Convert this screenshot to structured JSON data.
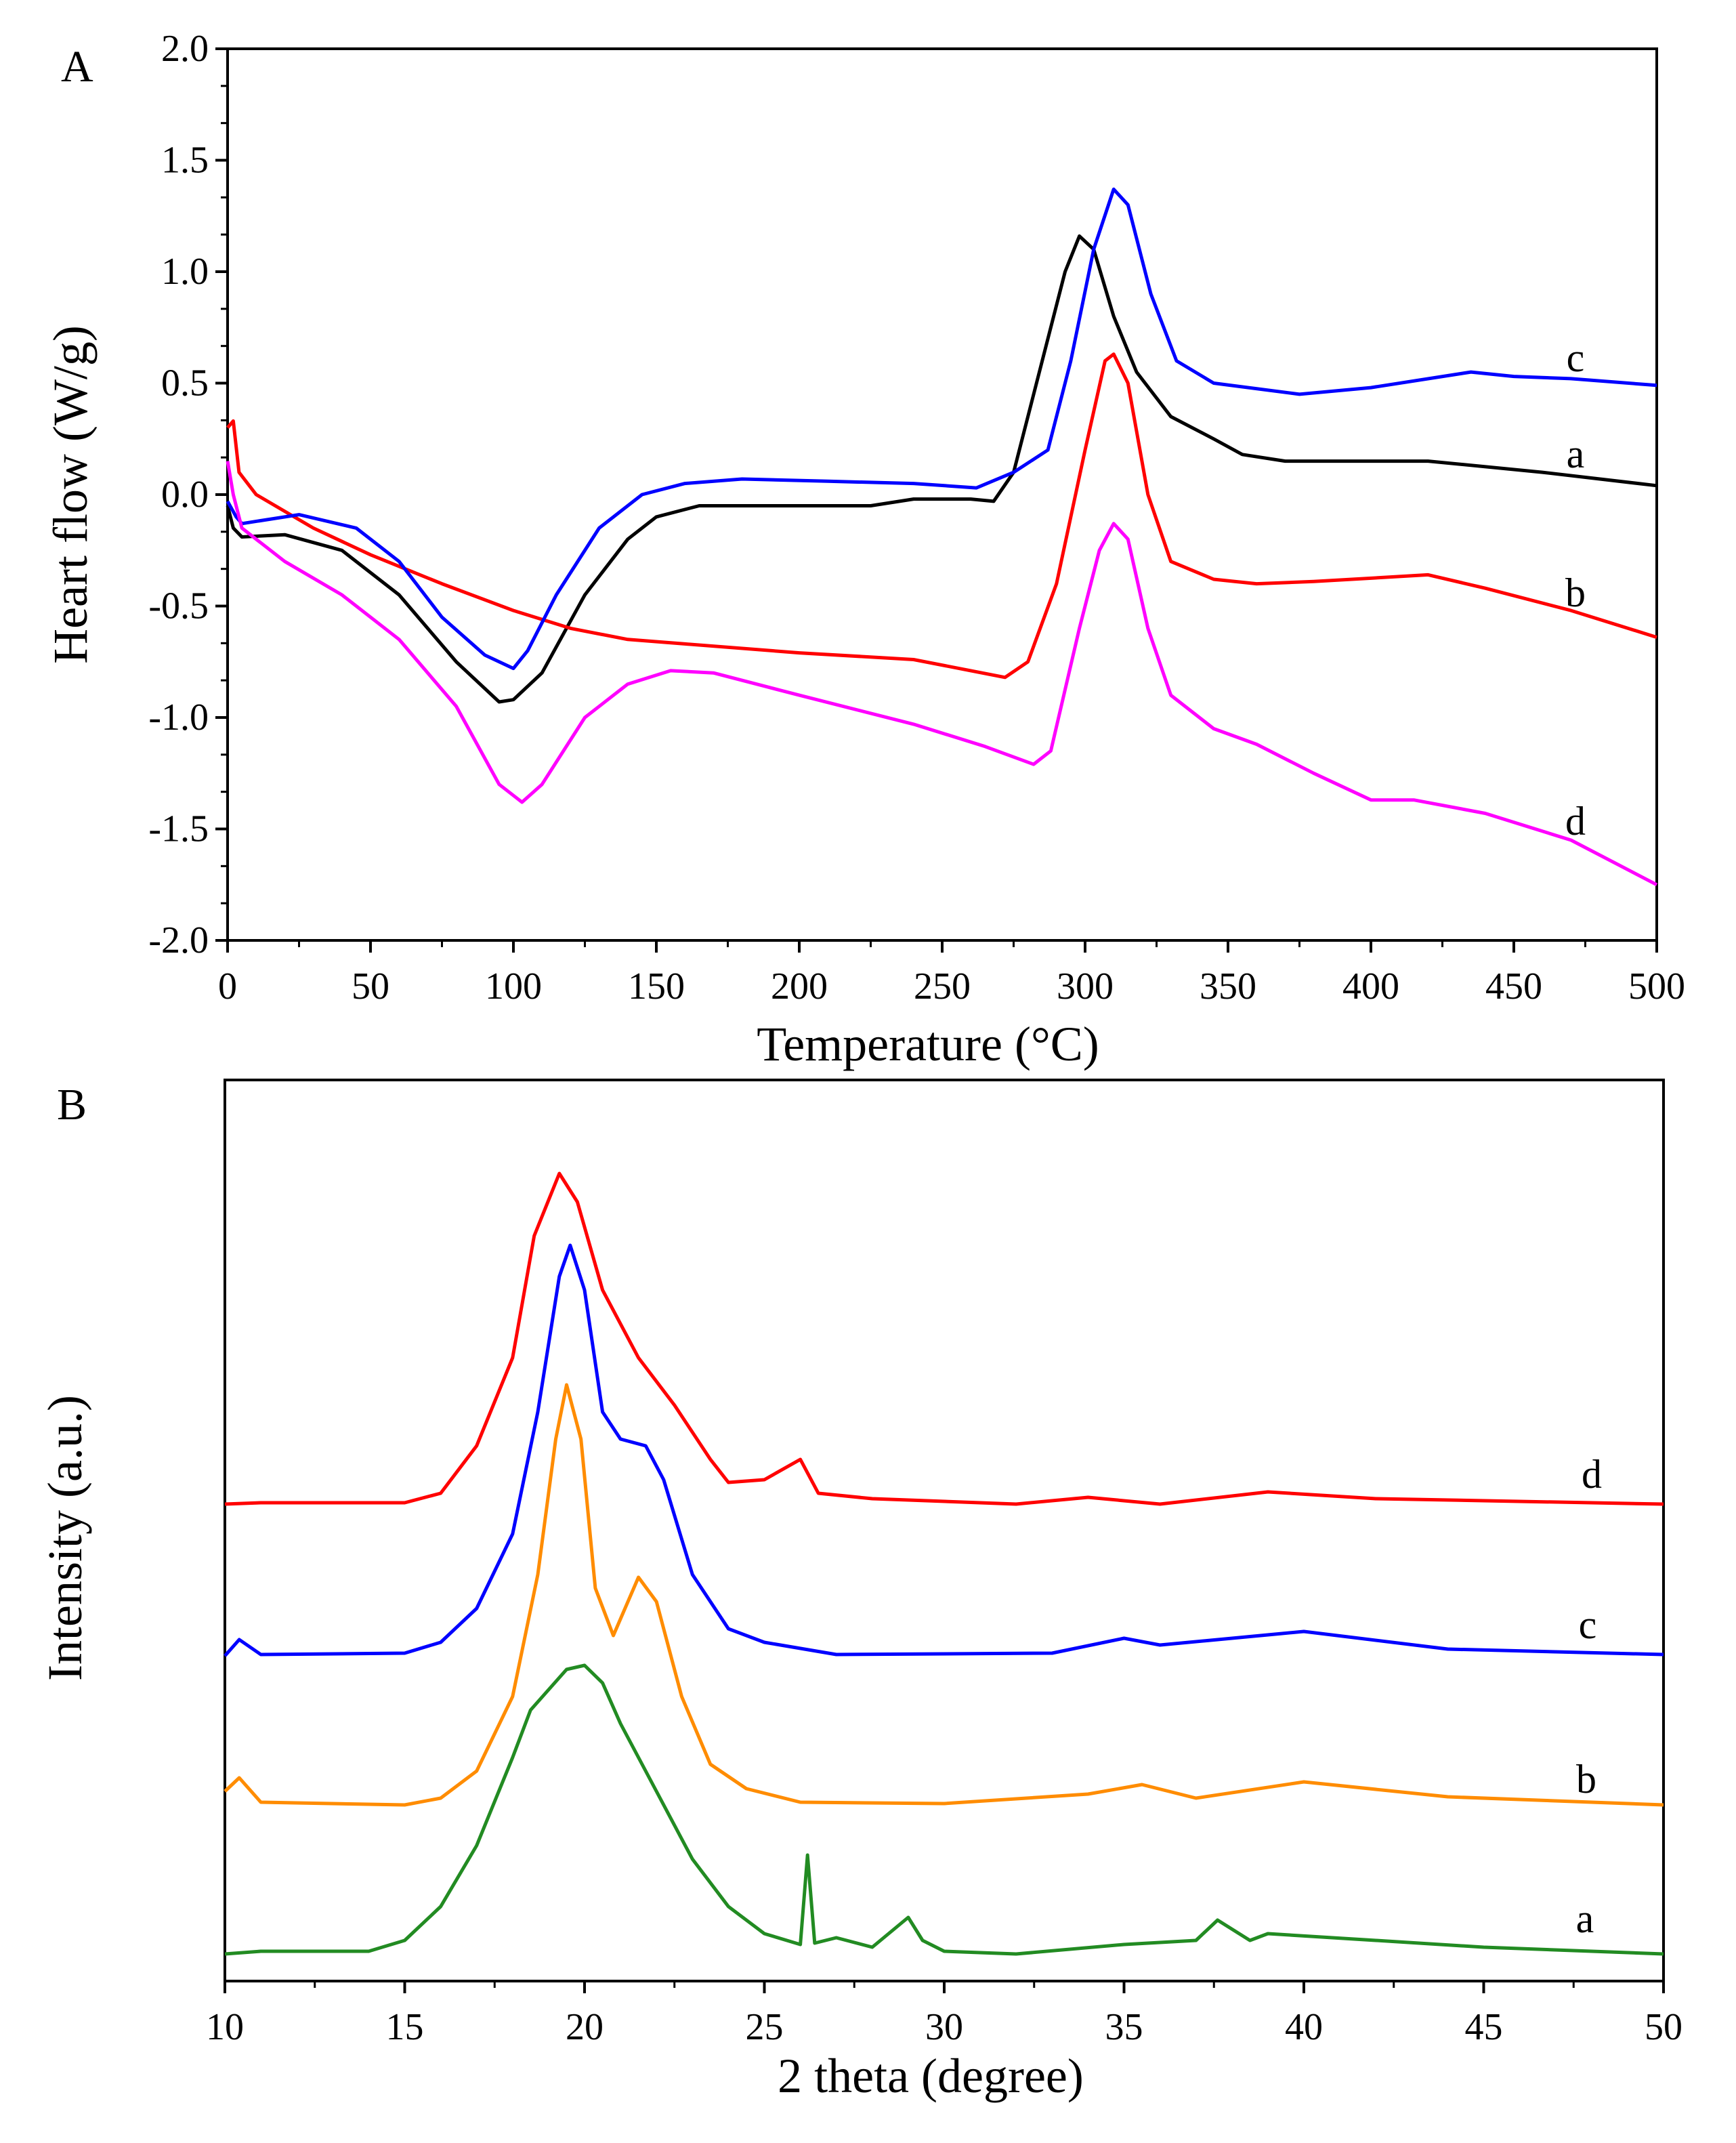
{
  "chart_data": [
    {
      "type": "line",
      "panel_label": "A",
      "xlabel": "Temperature (°C)",
      "ylabel": "Heart flow (W/g)",
      "xlim": [
        0,
        500
      ],
      "ylim": [
        -2.0,
        2.0
      ],
      "xticks": [
        "0",
        "50",
        "100",
        "150",
        "200",
        "250",
        "300",
        "350",
        "400",
        "450",
        "500"
      ],
      "yticks": [
        "2.0",
        "1.5",
        "1.0",
        "0.5",
        "0.0",
        "-0.5",
        "-1.0",
        "-1.5",
        "-2.0"
      ],
      "series": [
        {
          "name": "a",
          "color": "#000000",
          "x": [
            0,
            2,
            5,
            20,
            40,
            60,
            80,
            95,
            100,
            110,
            125,
            140,
            150,
            165,
            200,
            225,
            240,
            260,
            268,
            275,
            285,
            293,
            298,
            303,
            310,
            318,
            330,
            345,
            355,
            370,
            420,
            460,
            500
          ],
          "y": [
            -0.05,
            -0.15,
            -0.19,
            -0.18,
            -0.25,
            -0.45,
            -0.75,
            -0.93,
            -0.92,
            -0.8,
            -0.45,
            -0.2,
            -0.1,
            -0.05,
            -0.05,
            -0.05,
            -0.02,
            -0.02,
            -0.03,
            0.1,
            0.6,
            1.0,
            1.16,
            1.1,
            0.8,
            0.55,
            0.35,
            0.25,
            0.18,
            0.15,
            0.15,
            0.1,
            0.04
          ]
        },
        {
          "name": "b",
          "color": "#ff0000",
          "x": [
            0,
            2,
            4,
            10,
            30,
            50,
            75,
            100,
            120,
            140,
            160,
            200,
            240,
            260,
            272,
            280,
            290,
            300,
            307,
            310,
            315,
            322,
            330,
            345,
            360,
            380,
            420,
            440,
            470,
            500
          ],
          "y": [
            0.3,
            0.33,
            0.1,
            0.0,
            -0.15,
            -0.27,
            -0.4,
            -0.52,
            -0.6,
            -0.65,
            -0.67,
            -0.71,
            -0.74,
            -0.79,
            -0.82,
            -0.75,
            -0.4,
            0.2,
            0.6,
            0.63,
            0.5,
            0.0,
            -0.3,
            -0.38,
            -0.4,
            -0.39,
            -0.36,
            -0.42,
            -0.52,
            -0.64
          ]
        },
        {
          "name": "c",
          "color": "#0000ff",
          "x": [
            0,
            3,
            5,
            25,
            45,
            60,
            75,
            90,
            100,
            105,
            115,
            130,
            145,
            160,
            180,
            210,
            240,
            262,
            275,
            287,
            295,
            303,
            310,
            315,
            323,
            332,
            345,
            375,
            400,
            435,
            450,
            470,
            500
          ],
          "y": [
            -0.03,
            -0.1,
            -0.13,
            -0.09,
            -0.15,
            -0.3,
            -0.55,
            -0.72,
            -0.78,
            -0.7,
            -0.45,
            -0.15,
            0.0,
            0.05,
            0.07,
            0.06,
            0.05,
            0.03,
            0.1,
            0.2,
            0.6,
            1.1,
            1.37,
            1.3,
            0.9,
            0.6,
            0.5,
            0.45,
            0.48,
            0.55,
            0.53,
            0.52,
            0.49
          ]
        },
        {
          "name": "d",
          "color": "#ff00ff",
          "x": [
            0,
            2,
            5,
            20,
            40,
            60,
            80,
            95,
            103,
            110,
            125,
            140,
            155,
            170,
            200,
            240,
            265,
            282,
            288,
            298,
            305,
            310,
            315,
            322,
            330,
            345,
            360,
            380,
            400,
            415,
            440,
            470,
            500
          ],
          "y": [
            0.15,
            0.0,
            -0.15,
            -0.3,
            -0.45,
            -0.65,
            -0.95,
            -1.3,
            -1.38,
            -1.3,
            -1.0,
            -0.85,
            -0.79,
            -0.8,
            -0.9,
            -1.03,
            -1.13,
            -1.21,
            -1.15,
            -0.6,
            -0.25,
            -0.13,
            -0.2,
            -0.6,
            -0.9,
            -1.05,
            -1.12,
            -1.25,
            -1.37,
            -1.37,
            -1.43,
            -1.55,
            -1.75
          ]
        }
      ]
    },
    {
      "type": "line",
      "panel_label": "B",
      "xlabel": "2 theta (degree)",
      "ylabel": "Intensity (a.u.)",
      "xlim": [
        10,
        50
      ],
      "ylim": [
        0,
        665
      ],
      "xticks": [
        "10",
        "15",
        "20",
        "25",
        "30",
        "35",
        "40",
        "45",
        "50"
      ],
      "series": [
        {
          "name": "a",
          "color": "#228b22",
          "x": [
            10,
            11,
            14,
            15,
            16,
            17,
            18,
            18.5,
            19,
            19.5,
            20,
            20.5,
            21,
            22,
            23,
            24,
            25,
            26,
            26.2,
            26.4,
            27,
            28,
            29,
            29.4,
            30,
            32,
            35,
            37,
            37.6,
            38.5,
            39,
            42,
            45,
            50
          ],
          "y": [
            20,
            22,
            22,
            30,
            55,
            100,
            165,
            200,
            215,
            230,
            233,
            220,
            190,
            140,
            90,
            55,
            35,
            27,
            93,
            28,
            32,
            25,
            47,
            30,
            22,
            20,
            27,
            30,
            45,
            30,
            35,
            30,
            25,
            20
          ]
        },
        {
          "name": "b",
          "color": "#ff8c00",
          "x": [
            10,
            10.4,
            11,
            15,
            16,
            17,
            18,
            18.7,
            19.2,
            19.5,
            19.9,
            20.3,
            20.8,
            21.5,
            22,
            22.7,
            23.5,
            24.5,
            26,
            30,
            34,
            35.5,
            37,
            40,
            44,
            50
          ],
          "y": [
            140,
            150,
            132,
            130,
            135,
            155,
            210,
            300,
            400,
            440,
            400,
            290,
            255,
            298,
            280,
            210,
            160,
            142,
            132,
            131,
            138,
            145,
            135,
            147,
            136,
            130
          ]
        },
        {
          "name": "c",
          "color": "#0000ff",
          "x": [
            10,
            10.4,
            11,
            15,
            16,
            17,
            18,
            18.7,
            19.3,
            19.6,
            20,
            20.5,
            21,
            21.7,
            22.2,
            23,
            24,
            25,
            27,
            33,
            35,
            36,
            40,
            44,
            50
          ],
          "y": [
            240,
            252,
            241,
            242,
            250,
            275,
            330,
            420,
            520,
            543,
            510,
            420,
            400,
            395,
            370,
            300,
            260,
            250,
            241,
            242,
            253,
            248,
            258,
            245,
            241
          ]
        },
        {
          "name": "d",
          "color": "#ff0000",
          "x": [
            10,
            11,
            15,
            16,
            17,
            18,
            18.6,
            19.3,
            19.8,
            20.5,
            21.5,
            22.5,
            23.5,
            24,
            25,
            26,
            26.5,
            28,
            32,
            34,
            36,
            39,
            42,
            50
          ],
          "y": [
            352,
            353,
            353,
            360,
            395,
            460,
            550,
            596,
            575,
            510,
            460,
            425,
            385,
            368,
            370,
            385,
            360,
            356,
            352,
            357,
            352,
            361,
            356,
            352
          ]
        }
      ]
    }
  ]
}
